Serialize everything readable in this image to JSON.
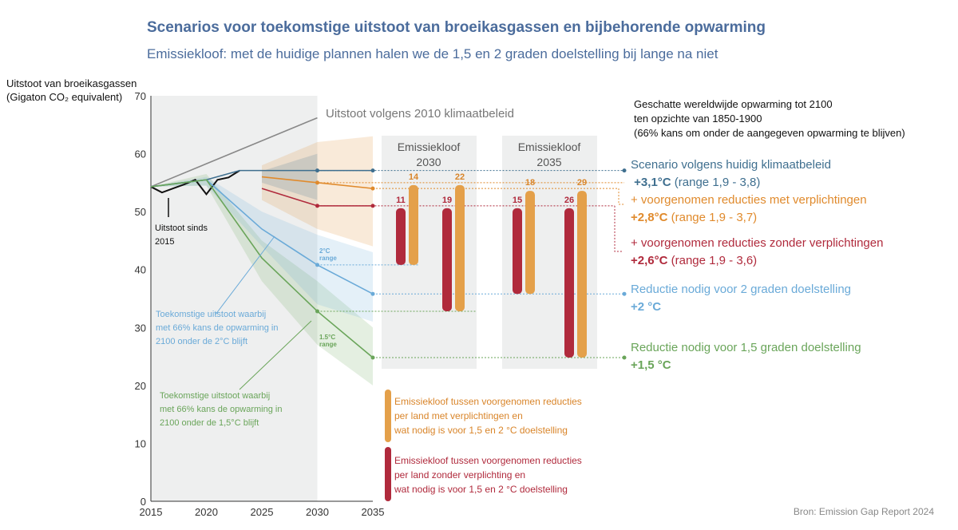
{
  "title": "Scenarios voor toekomstige uitstoot van broeikasgassen en bijbehorende opwarming",
  "subtitle": "Emissiekloof: met de huidige plannen halen we de  1,5 en 2 graden doelstelling bij lange na niet",
  "source": "Bron: Emission Gap Report 2024",
  "legend_title": [
    "Geschatte wereldwijde opwarming tot 2100",
    "ten opzichte van 1850-1900",
    "(66% kans om onder de aangegeven opwarming te blijven)"
  ],
  "scenarios": [
    {
      "label": "Scenario volgens huidig klimaatbeleid",
      "temp": "+3,1°C",
      "range": " (range 1,9 - 3,8)",
      "color": "#3f6f8f"
    },
    {
      "label": "+ voorgenomen reducties met verplichtingen",
      "temp": "+2,8°C",
      "range": " (range 1,9 - 3,7)",
      "color": "#e08a2c"
    },
    {
      "label": "+ voorgenomen reducties zonder verplichtingen",
      "temp": "+2,6°C",
      "range": " (range 1,9 - 3,6)",
      "color": "#b02a3c"
    },
    {
      "label": "Reductie nodig voor 2 graden doelstelling",
      "temp": "+2 °C",
      "range": "",
      "color": "#6aaad8"
    },
    {
      "label": "Reductie nodig voor 1,5 graden doelstelling",
      "temp": "+1,5 °C",
      "range": "",
      "color": "#6aa55a"
    }
  ],
  "annotations": {
    "history": [
      "Uitstoot sinds",
      "2015"
    ],
    "policy2010": "Uitstoot volgens 2010 klimaatbeleid",
    "two_deg": [
      "Toekomstige uitstoot waarbij",
      "met 66% kans de opwarming in",
      "2100 onder de 2°C blijft"
    ],
    "one5_deg": [
      "Toekomstige uitstoot waarbij",
      "met 66% kans de opwarming in",
      "2100 onder de 1,5°C blijft"
    ],
    "range2": [
      "2°C",
      "range"
    ],
    "range15": [
      "1.5°C",
      "range"
    ],
    "gap_cond": [
      "Emissiekloof tussen voorgenomen reducties",
      "per land met verplichtingen en",
      "wat nodig is voor 1,5 en 2 °C doelstelling"
    ],
    "gap_uncond": [
      "Emissiekloof tussen voorgenomen reducties",
      "per land zonder verplichting en",
      "wat nodig is voor 1,5 en 2 °C doelstelling"
    ]
  },
  "chart_data": {
    "type": "line",
    "ylabel": "Uitstoot van broeikasgassen (Gigaton CO₂ equivalent)",
    "ylim": [
      0,
      70
    ],
    "yticks": [
      0,
      10,
      20,
      30,
      40,
      50,
      60,
      70
    ],
    "xlim": [
      2015,
      2035
    ],
    "xticks": [
      2015,
      2020,
      2025,
      2030,
      2035
    ],
    "series": [
      {
        "name": "Uitstoot sinds 2015",
        "color": "#111111",
        "x": [
          2015,
          2016,
          2017,
          2018,
          2019,
          2020,
          2021,
          2022,
          2023
        ],
        "y": [
          54.3,
          53.3,
          54.0,
          54.7,
          55.5,
          53.0,
          55.5,
          55.9,
          57.1
        ]
      },
      {
        "name": "Uitstoot volgens 2010 klimaatbeleid",
        "color": "#888888",
        "x": [
          2015,
          2030
        ],
        "y": [
          54.3,
          66.2
        ]
      },
      {
        "name": "Huidig klimaatbeleid",
        "color": "#3f6f8f",
        "x": [
          2015,
          2020,
          2023,
          2030,
          2035
        ],
        "y": [
          54.3,
          55.5,
          57.1,
          57.1,
          57.1
        ]
      },
      {
        "name": "Met verplichtingen",
        "color": "#e08a2c",
        "x": [
          2025,
          2030,
          2035
        ],
        "y": [
          56.0,
          55.0,
          54.0
        ]
      },
      {
        "name": "Zonder verplichtingen",
        "color": "#b02a3c",
        "x": [
          2025,
          2030,
          2035
        ],
        "y": [
          54.0,
          51.0,
          51.0
        ]
      },
      {
        "name": "2°C",
        "color": "#6aaad8",
        "x": [
          2015,
          2020,
          2025,
          2030,
          2035
        ],
        "y": [
          54.3,
          55.5,
          47.0,
          40.8,
          35.8
        ]
      },
      {
        "name": "1,5°C",
        "color": "#6aa55a",
        "x": [
          2015,
          2020,
          2025,
          2030,
          2035
        ],
        "y": [
          54.3,
          55.5,
          42.0,
          32.8,
          24.8
        ]
      }
    ],
    "gaps": [
      {
        "panel": "Emissiekloof 2030",
        "bars": [
          {
            "value": 11,
            "from": 51,
            "to": 40.8,
            "type": "uncond"
          },
          {
            "value": 14,
            "from": 55,
            "to": 40.8,
            "type": "cond"
          },
          {
            "value": 19,
            "from": 51,
            "to": 32.8,
            "type": "uncond"
          },
          {
            "value": 22,
            "from": 55,
            "to": 32.8,
            "type": "cond"
          }
        ]
      },
      {
        "panel": "Emissiekloof 2035",
        "bars": [
          {
            "value": 15,
            "from": 51,
            "to": 35.8,
            "type": "uncond"
          },
          {
            "value": 18,
            "from": 54,
            "to": 35.8,
            "type": "cond"
          },
          {
            "value": 26,
            "from": 51,
            "to": 24.8,
            "type": "uncond"
          },
          {
            "value": 29,
            "from": 54,
            "to": 24.8,
            "type": "cond"
          }
        ]
      }
    ],
    "panel_titles": [
      [
        "Emissiekloof",
        "2030"
      ],
      [
        "Emissiekloof",
        "2035"
      ]
    ]
  }
}
